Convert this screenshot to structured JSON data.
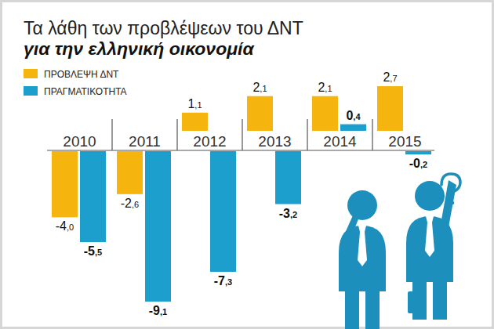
{
  "chart_data": {
    "type": "bar",
    "title": "Τα λάθη των προβλέψεων του ΔΝΤ",
    "subtitle": "για την ελληνική οικονομία",
    "categories": [
      "2010",
      "2011",
      "2012",
      "2013",
      "2014",
      "2015"
    ],
    "series": [
      {
        "name": "ΠΡΟΒΛΕΨΗ ΔΝΤ",
        "color": "#f6b40e",
        "values": [
          -4.0,
          -2.6,
          1.1,
          2.1,
          2.1,
          2.7
        ],
        "value_labels": [
          "-4,0",
          "-2,6",
          "1,1",
          "2,1",
          "2,1",
          "2,7"
        ]
      },
      {
        "name": "ΠΡΑΓΜΑΤΙΚΟΤΗΤΑ",
        "color": "#1c9fcd",
        "values": [
          -5.5,
          -9.1,
          -7.3,
          -3.2,
          0.4,
          -0.2
        ],
        "value_labels": [
          "-5,5",
          "-9,1",
          "-7,3",
          "-3,2",
          "0,4",
          "-0,2"
        ]
      }
    ],
    "legend": "upper left",
    "data_labels": true,
    "tick_labels": "x",
    "grid": false
  }
}
